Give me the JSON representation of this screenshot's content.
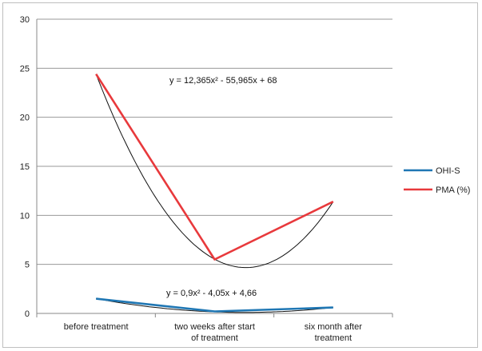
{
  "chart_data": {
    "type": "line",
    "categories": [
      "before treatment",
      "two weeks after start of treatment",
      "six month after treatment"
    ],
    "category_lines": [
      [
        "before treatment"
      ],
      [
        "two weeks after start",
        "of treatment"
      ],
      [
        "six month after",
        "treatment"
      ]
    ],
    "series": [
      {
        "name": "OHI-S",
        "values": [
          1.5,
          0.2,
          0.6
        ],
        "color": "#1f77b4"
      },
      {
        "name": "PMA (%)",
        "values": [
          24.4,
          5.5,
          11.4
        ],
        "color": "#e8393c"
      }
    ],
    "trendlines": [
      {
        "series": "PMA (%)",
        "equation": "y = 12,365x² - 55,965x + 68",
        "a": 12.365,
        "b": -55.965,
        "c": 68,
        "color": "#111111"
      },
      {
        "series": "OHI-S",
        "equation": "y = 0,9x² - 4,05x + 4,66",
        "a": 0.9,
        "b": -4.05,
        "c": 4.66,
        "color": "#111111"
      }
    ],
    "ylim": [
      0,
      30
    ],
    "yticks": [
      0,
      5,
      10,
      15,
      20,
      25,
      30
    ],
    "grid": true,
    "legend": "right",
    "title": "",
    "xlabel": "",
    "ylabel": ""
  }
}
